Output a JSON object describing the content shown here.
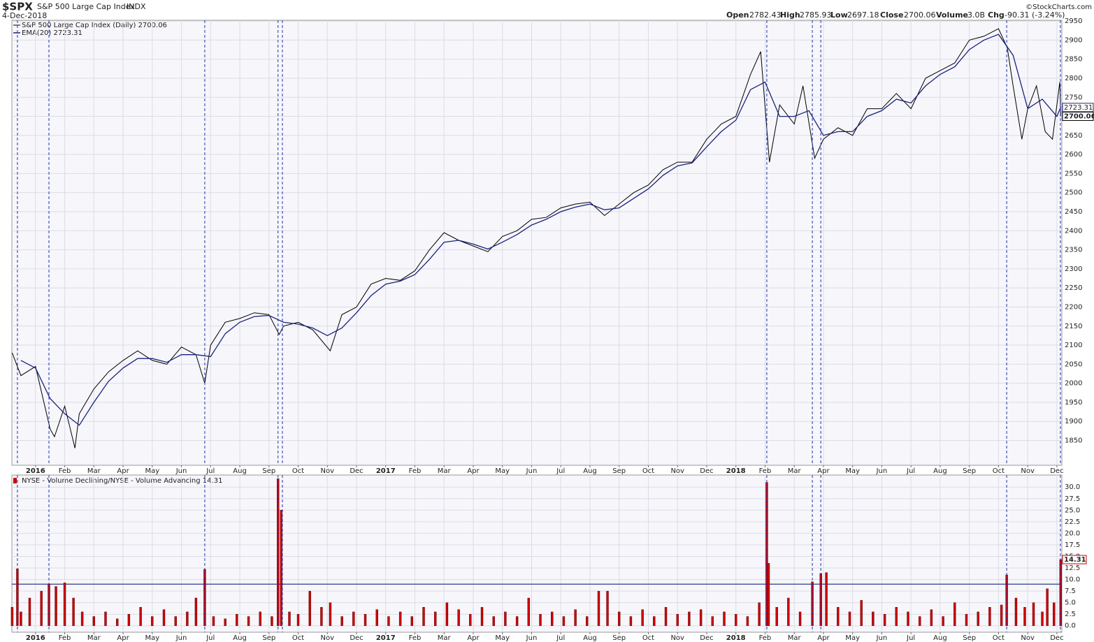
{
  "header": {
    "symbol": "$SPX",
    "name": "S&P 500 Large Cap Index",
    "exchange": "INDX",
    "date": "4-Dec-2018",
    "open_label": "Open",
    "open": 2782.43,
    "high_label": "High",
    "high": 2785.93,
    "low_label": "Low",
    "low": 2697.18,
    "close_label": "Close",
    "close": 2700.06,
    "volume_label": "Volume",
    "volume": "3.0B",
    "chg_label": "Chg",
    "chg": "-90.31 (-3.24%)",
    "credit": "©StockCharts.com"
  },
  "markers": {
    "x": [
      -0.62,
      0.46,
      5.8,
      8.31,
      8.46,
      25.06,
      26.62,
      26.91,
      33.28,
      35.12
    ],
    "color": "#2233aa"
  },
  "chart_data": [
    {
      "type": "line",
      "xlim": [
        -0.81,
        35.17
      ],
      "ylim": [
        1785,
        2952
      ],
      "yticks": [
        1850,
        1900,
        1950,
        2000,
        2050,
        2100,
        2150,
        2200,
        2250,
        2300,
        2350,
        2400,
        2450,
        2500,
        2550,
        2600,
        2650,
        2700,
        2750,
        2800,
        2850,
        2900,
        2950
      ],
      "xticks": [
        {
          "value": 0,
          "label": "2016"
        },
        {
          "value": 1,
          "label": "Feb"
        },
        {
          "value": 2,
          "label": "Mar"
        },
        {
          "value": 3,
          "label": "Apr"
        },
        {
          "value": 4,
          "label": "May"
        },
        {
          "value": 5,
          "label": "Jun"
        },
        {
          "value": 6,
          "label": "Jul"
        },
        {
          "value": 7,
          "label": "Aug"
        },
        {
          "value": 8,
          "label": "Sep"
        },
        {
          "value": 9,
          "label": "Oct"
        },
        {
          "value": 10,
          "label": "Nov"
        },
        {
          "value": 11,
          "label": "Dec"
        },
        {
          "value": 12,
          "label": "2017"
        },
        {
          "value": 13,
          "label": "Feb"
        },
        {
          "value": 14,
          "label": "Mar"
        },
        {
          "value": 15,
          "label": "Apr"
        },
        {
          "value": 16,
          "label": "May"
        },
        {
          "value": 17,
          "label": "Jun"
        },
        {
          "value": 18,
          "label": "Jul"
        },
        {
          "value": 19,
          "label": "Aug"
        },
        {
          "value": 20,
          "label": "Sep"
        },
        {
          "value": 21,
          "label": "Oct"
        },
        {
          "value": 22,
          "label": "Nov"
        },
        {
          "value": 23,
          "label": "Dec"
        },
        {
          "value": 24,
          "label": "2018"
        },
        {
          "value": 25,
          "label": "Feb"
        },
        {
          "value": 26,
          "label": "Mar"
        },
        {
          "value": 27,
          "label": "Apr"
        },
        {
          "value": 28,
          "label": "May"
        },
        {
          "value": 29,
          "label": "Jun"
        },
        {
          "value": 30,
          "label": "Jul"
        },
        {
          "value": 31,
          "label": "Aug"
        },
        {
          "value": 32,
          "label": "Sep"
        },
        {
          "value": 33,
          "label": "Oct"
        },
        {
          "value": 34,
          "label": "Nov"
        },
        {
          "value": 35,
          "label": "Dec"
        }
      ],
      "grid": true,
      "series": [
        {
          "name": "S&P 500 Large Cap Index (Daily) 2700.06",
          "color": "#000000",
          "x": [
            -0.8,
            -0.5,
            0,
            0.5,
            0.65,
            1.0,
            1.35,
            1.5,
            2.0,
            2.5,
            3.0,
            3.5,
            4.0,
            4.5,
            5.0,
            5.5,
            5.8,
            6.0,
            6.5,
            7.0,
            7.5,
            8.0,
            8.35,
            8.5,
            9.0,
            9.5,
            10.1,
            10.5,
            11.0,
            11.5,
            12.0,
            12.5,
            13.0,
            13.5,
            14.0,
            14.5,
            15.0,
            15.5,
            16.0,
            16.5,
            17.0,
            17.5,
            18.0,
            18.5,
            19.0,
            19.5,
            20.0,
            20.5,
            21.0,
            21.5,
            22.0,
            22.5,
            23.0,
            23.5,
            24.0,
            24.5,
            24.85,
            25.15,
            25.5,
            26.0,
            26.3,
            26.7,
            27.0,
            27.5,
            28.0,
            28.5,
            29.0,
            29.5,
            30.0,
            30.5,
            31.0,
            31.5,
            32.0,
            32.5,
            33.0,
            33.3,
            33.5,
            33.8,
            34.0,
            34.3,
            34.6,
            34.85,
            35.1,
            35.13
          ],
          "values": [
            2080,
            2020,
            2044,
            1880,
            1860,
            1940,
            1830,
            1920,
            1985,
            2030,
            2060,
            2085,
            2060,
            2050,
            2095,
            2075,
            2000,
            2100,
            2160,
            2170,
            2185,
            2180,
            2128,
            2150,
            2160,
            2140,
            2085,
            2180,
            2200,
            2260,
            2275,
            2270,
            2295,
            2350,
            2395,
            2375,
            2360,
            2345,
            2385,
            2400,
            2430,
            2435,
            2460,
            2470,
            2475,
            2440,
            2470,
            2500,
            2520,
            2560,
            2580,
            2580,
            2640,
            2680,
            2700,
            2810,
            2870,
            2580,
            2730,
            2680,
            2780,
            2590,
            2640,
            2670,
            2650,
            2720,
            2720,
            2760,
            2720,
            2800,
            2820,
            2840,
            2900,
            2910,
            2930,
            2880,
            2780,
            2640,
            2720,
            2780,
            2660,
            2640,
            2790,
            2700.06
          ]
        },
        {
          "name": "EMA(20) 2723.31",
          "color": "#1a237e",
          "x": [
            -0.5,
            0,
            0.5,
            1,
            1.5,
            2,
            2.5,
            3,
            3.5,
            4,
            4.5,
            5,
            5.5,
            6,
            6.5,
            7,
            7.5,
            8,
            8.5,
            9,
            9.5,
            10,
            10.5,
            11,
            11.5,
            12,
            12.5,
            13,
            13.5,
            14,
            14.5,
            15,
            15.5,
            16,
            16.5,
            17,
            17.5,
            18,
            18.5,
            19,
            19.5,
            20,
            20.5,
            21,
            21.5,
            22,
            22.5,
            23,
            23.5,
            24,
            24.5,
            25,
            25.5,
            26,
            26.5,
            27,
            27.5,
            28,
            28.5,
            29,
            29.5,
            30,
            30.5,
            31,
            31.5,
            32,
            32.5,
            33,
            33.5,
            34,
            34.5,
            35,
            35.13
          ],
          "values": [
            2060,
            2040,
            1960,
            1920,
            1890,
            1950,
            2005,
            2040,
            2065,
            2065,
            2055,
            2075,
            2075,
            2070,
            2130,
            2160,
            2175,
            2178,
            2160,
            2155,
            2145,
            2125,
            2145,
            2185,
            2230,
            2260,
            2268,
            2285,
            2325,
            2370,
            2375,
            2365,
            2352,
            2370,
            2390,
            2415,
            2430,
            2450,
            2462,
            2470,
            2455,
            2460,
            2485,
            2510,
            2545,
            2570,
            2578,
            2620,
            2660,
            2690,
            2770,
            2790,
            2700,
            2700,
            2715,
            2650,
            2660,
            2660,
            2700,
            2715,
            2745,
            2735,
            2780,
            2810,
            2830,
            2875,
            2900,
            2915,
            2860,
            2720,
            2745,
            2700,
            2723.31
          ]
        }
      ]
    },
    {
      "type": "bar",
      "title": "NYSE - Volume Declining/NYSE - Volume Advancing 14.31",
      "color": "#cc0000",
      "xlim": [
        -0.81,
        35.17
      ],
      "ylim": [
        -1.4,
        32.6
      ],
      "threshold": 9,
      "yticks": [
        {
          "value": 0,
          "label": "0.0"
        },
        {
          "value": 2.5,
          "label": "2.5"
        },
        {
          "value": 5,
          "label": "5.0"
        },
        {
          "value": 7.5,
          "label": "7.5"
        },
        {
          "value": 10,
          "label": "10.0"
        },
        {
          "value": 12.5,
          "label": "12.5"
        },
        {
          "value": 15,
          "label": "15.0"
        },
        {
          "value": 17.5,
          "label": "17.5"
        },
        {
          "value": 20,
          "label": "20.0"
        },
        {
          "value": 22.5,
          "label": "22.5"
        },
        {
          "value": 25,
          "label": "25.0"
        },
        {
          "value": 27.5,
          "label": "27.5"
        },
        {
          "value": 30,
          "label": "30.0"
        }
      ],
      "xticks": [
        {
          "value": 0,
          "label": "2016"
        },
        {
          "value": 1,
          "label": "Feb"
        },
        {
          "value": 2,
          "label": "Mar"
        },
        {
          "value": 3,
          "label": "Apr"
        },
        {
          "value": 4,
          "label": "May"
        },
        {
          "value": 5,
          "label": "Jun"
        },
        {
          "value": 6,
          "label": "Jul"
        },
        {
          "value": 7,
          "label": "Aug"
        },
        {
          "value": 8,
          "label": "Sep"
        },
        {
          "value": 9,
          "label": "Oct"
        },
        {
          "value": 10,
          "label": "Nov"
        },
        {
          "value": 11,
          "label": "Dec"
        },
        {
          "value": 12,
          "label": "2017"
        },
        {
          "value": 13,
          "label": "Feb"
        },
        {
          "value": 14,
          "label": "Mar"
        },
        {
          "value": 15,
          "label": "Apr"
        },
        {
          "value": 16,
          "label": "May"
        },
        {
          "value": 17,
          "label": "Jun"
        },
        {
          "value": 18,
          "label": "Jul"
        },
        {
          "value": 19,
          "label": "Aug"
        },
        {
          "value": 20,
          "label": "Sep"
        },
        {
          "value": 21,
          "label": "Oct"
        },
        {
          "value": 22,
          "label": "Nov"
        },
        {
          "value": 23,
          "label": "Dec"
        },
        {
          "value": 24,
          "label": "2018"
        },
        {
          "value": 25,
          "label": "Feb"
        },
        {
          "value": 26,
          "label": "Mar"
        },
        {
          "value": 27,
          "label": "Apr"
        },
        {
          "value": 28,
          "label": "May"
        },
        {
          "value": 29,
          "label": "Jun"
        },
        {
          "value": 30,
          "label": "Jul"
        },
        {
          "value": 31,
          "label": "Aug"
        },
        {
          "value": 32,
          "label": "Sep"
        },
        {
          "value": 33,
          "label": "Oct"
        },
        {
          "value": 34,
          "label": "Nov"
        },
        {
          "value": 35,
          "label": "Dec"
        }
      ],
      "grid": true,
      "x": [
        -0.8,
        -0.62,
        -0.5,
        -0.2,
        0.2,
        0.46,
        0.7,
        1.0,
        1.3,
        1.6,
        2.0,
        2.4,
        2.8,
        3.2,
        3.6,
        4.0,
        4.4,
        4.8,
        5.2,
        5.5,
        5.8,
        6.1,
        6.5,
        6.9,
        7.3,
        7.7,
        8.1,
        8.31,
        8.42,
        8.7,
        9.0,
        9.4,
        9.8,
        10.1,
        10.5,
        10.9,
        11.3,
        11.7,
        12.1,
        12.5,
        12.9,
        13.3,
        13.7,
        14.1,
        14.5,
        14.9,
        15.3,
        15.7,
        16.1,
        16.5,
        16.9,
        17.3,
        17.7,
        18.1,
        18.5,
        18.9,
        19.3,
        19.6,
        20.0,
        20.4,
        20.8,
        21.2,
        21.6,
        22.0,
        22.4,
        22.8,
        23.2,
        23.6,
        24.0,
        24.4,
        24.8,
        25.06,
        25.12,
        25.4,
        25.8,
        26.2,
        26.62,
        26.91,
        27.1,
        27.5,
        27.9,
        28.3,
        28.7,
        29.1,
        29.5,
        29.9,
        30.3,
        30.7,
        31.1,
        31.5,
        31.9,
        32.3,
        32.7,
        33.1,
        33.28,
        33.6,
        33.9,
        34.2,
        34.5,
        34.67,
        34.9,
        35.13
      ],
      "values": [
        4,
        12.3,
        3,
        6,
        7.5,
        9,
        8.5,
        9.3,
        6,
        3,
        2,
        3,
        1.5,
        2.5,
        4,
        2,
        3.5,
        2,
        3,
        6,
        12.2,
        2,
        1.5,
        2.5,
        2,
        3,
        2,
        31.8,
        25,
        3,
        2.5,
        7.5,
        4,
        5,
        2,
        3,
        2.5,
        3.5,
        2,
        3,
        2,
        4,
        3,
        5,
        3.5,
        2.5,
        4,
        2,
        3,
        2,
        6,
        2.5,
        3,
        2,
        3.5,
        2,
        7.5,
        7.5,
        3,
        2,
        3.5,
        2,
        4,
        2.5,
        3,
        3.5,
        2,
        3,
        2.5,
        2,
        5,
        31,
        13.5,
        4,
        6,
        3,
        9.5,
        11.3,
        11.5,
        4,
        3,
        5.5,
        3,
        2.5,
        4,
        3,
        2,
        3.5,
        2,
        5,
        2.5,
        3,
        4,
        4.5,
        11,
        6,
        4,
        5,
        3,
        8,
        5,
        14.31
      ]
    }
  ]
}
